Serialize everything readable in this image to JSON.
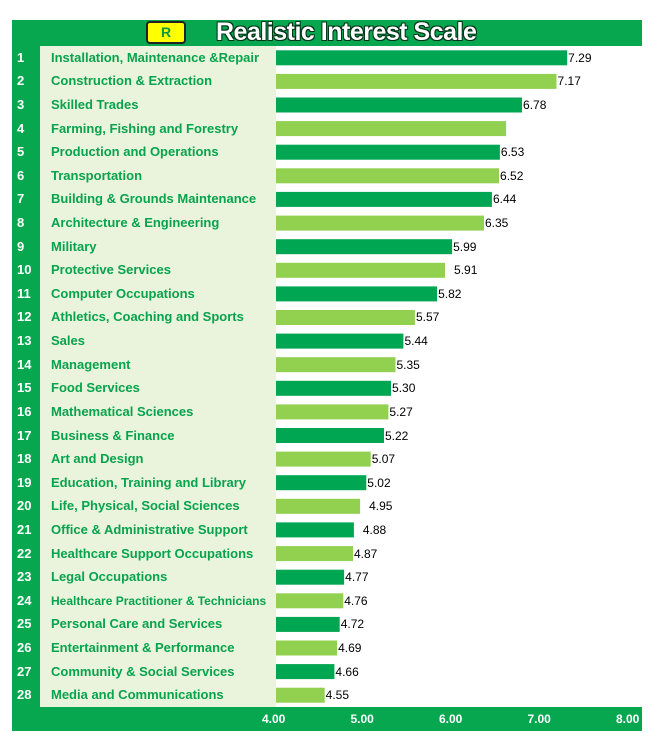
{
  "chart_data": {
    "type": "bar",
    "orientation": "horizontal",
    "badge": "R",
    "title": "Realistic Interest Scale",
    "xlim": [
      4.0,
      8.0
    ],
    "xticks": [
      "4.00",
      "5.00",
      "6.00",
      "7.00",
      "8.00"
    ],
    "grid": false,
    "colors": {
      "dark": "#00a651",
      "light": "#92d050",
      "frame": "#07a750",
      "label_bg": "#eaf3dc"
    },
    "rows": [
      {
        "rank": "1",
        "category": "Installation, Maintenance &Repair",
        "value": 7.29,
        "label": "7.29"
      },
      {
        "rank": "2",
        "category": "Construction & Extraction",
        "value": 7.17,
        "label": "7.17"
      },
      {
        "rank": "3",
        "category": "Skilled Trades",
        "value": 6.78,
        "label": "6.78"
      },
      {
        "rank": "4",
        "category": "Farming, Fishing and Forestry",
        "value": 6.6,
        "label": ""
      },
      {
        "rank": "5",
        "category": "Production and Operations",
        "value": 6.53,
        "label": "6.53"
      },
      {
        "rank": "6",
        "category": "Transportation",
        "value": 6.52,
        "label": "6.52"
      },
      {
        "rank": "7",
        "category": "Building & Grounds Maintenance",
        "value": 6.44,
        "label": "6.44"
      },
      {
        "rank": "8",
        "category": "Architecture & Engineering",
        "value": 6.35,
        "label": "6.35"
      },
      {
        "rank": "9",
        "category": "Military",
        "value": 5.99,
        "label": "5.99"
      },
      {
        "rank": "10",
        "category": "Protective Services",
        "value": 5.91,
        "label": "5.91"
      },
      {
        "rank": "11",
        "category": "Computer Occupations",
        "value": 5.82,
        "label": "5.82"
      },
      {
        "rank": "12",
        "category": "Athletics, Coaching and Sports",
        "value": 5.57,
        "label": "5.57"
      },
      {
        "rank": "13",
        "category": "Sales",
        "value": 5.44,
        "label": "5.44"
      },
      {
        "rank": "14",
        "category": "Management",
        "value": 5.35,
        "label": "5.35"
      },
      {
        "rank": "15",
        "category": "Food Services",
        "value": 5.3,
        "label": "5.30"
      },
      {
        "rank": "16",
        "category": "Mathematical Sciences",
        "value": 5.27,
        "label": "5.27"
      },
      {
        "rank": "17",
        "category": "Business & Finance",
        "value": 5.22,
        "label": "5.22"
      },
      {
        "rank": "18",
        "category": "Art and Design",
        "value": 5.07,
        "label": "5.07"
      },
      {
        "rank": "19",
        "category": "Education, Training and Library",
        "value": 5.02,
        "label": "5.02"
      },
      {
        "rank": "20",
        "category": "Life, Physical, Social Sciences",
        "value": 4.95,
        "label": "4.95"
      },
      {
        "rank": "21",
        "category": "Office & Administrative Support",
        "value": 4.88,
        "label": "4.88"
      },
      {
        "rank": "22",
        "category": "Healthcare Support Occupations",
        "value": 4.87,
        "label": "4.87"
      },
      {
        "rank": "23",
        "category": "Legal Occupations",
        "value": 4.77,
        "label": "4.77"
      },
      {
        "rank": "24",
        "category": "Healthcare Practitioner & Technicians",
        "value": 4.76,
        "label": "4.76"
      },
      {
        "rank": "25",
        "category": "Personal Care and Services",
        "value": 4.72,
        "label": "4.72"
      },
      {
        "rank": "26",
        "category": "Entertainment & Performance",
        "value": 4.69,
        "label": "4.69"
      },
      {
        "rank": "27",
        "category": "Community & Social Services",
        "value": 4.66,
        "label": "4.66"
      },
      {
        "rank": "28",
        "category": "Media and Communications",
        "value": 4.55,
        "label": "4.55"
      }
    ]
  }
}
